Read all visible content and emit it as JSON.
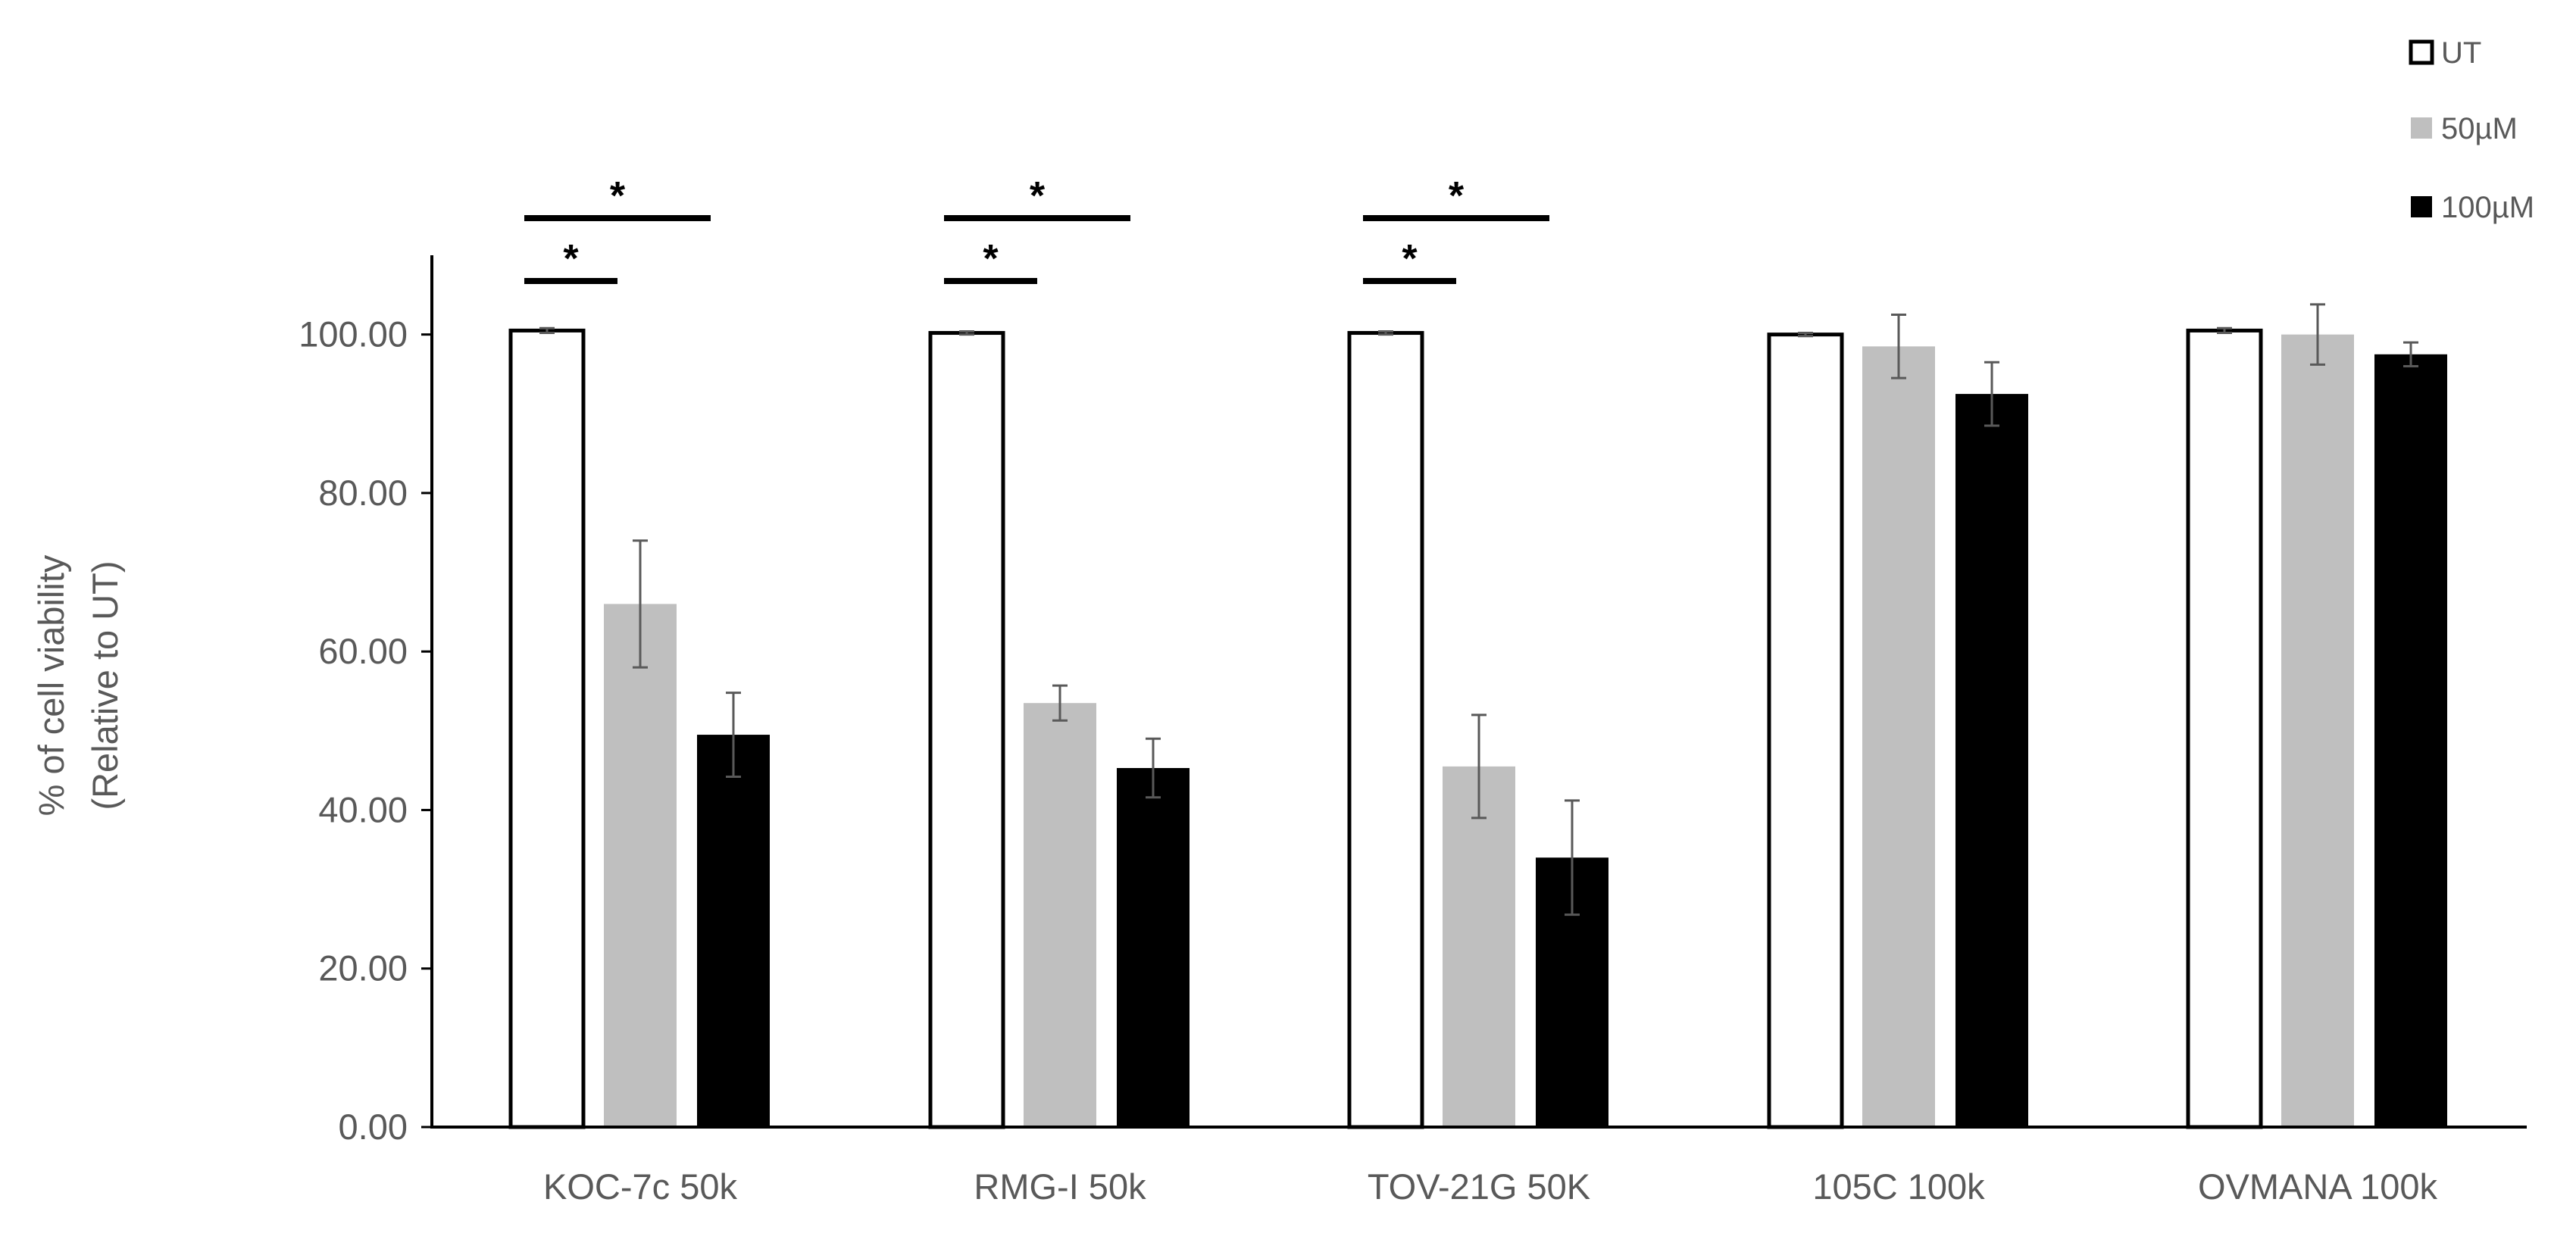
{
  "chart_data": {
    "type": "bar",
    "title": "",
    "xlabel": "",
    "ylabel": [
      "% of cell viability",
      "(Relative to UT)"
    ],
    "ylim": [
      0,
      110
    ],
    "yticks": [
      "0.00",
      "20.00",
      "40.00",
      "60.00",
      "80.00",
      "100.00"
    ],
    "grid": false,
    "legend_position": "top-right",
    "categories": [
      "KOC-7c 50k",
      "RMG-I 50k",
      "TOV-21G 50K",
      "105C 100k",
      "OVMANA 100k"
    ],
    "series": [
      {
        "name": "UT",
        "fill": "#ffffff",
        "stroke": "#000000",
        "values": [
          100.5,
          100.2,
          100.2,
          100.0,
          100.5
        ],
        "errors": [
          0.3,
          0.2,
          0.2,
          0.2,
          0.3
        ]
      },
      {
        "name": "50µM",
        "fill": "#bfbfbf",
        "stroke": "#bfbfbf",
        "values": [
          66.0,
          53.5,
          45.5,
          98.5,
          100.0
        ],
        "errors": [
          8.0,
          2.2,
          6.5,
          4.0,
          3.8
        ]
      },
      {
        "name": "100µM",
        "fill": "#000000",
        "stroke": "#000000",
        "values": [
          49.5,
          45.3,
          34.0,
          92.5,
          97.5
        ],
        "errors": [
          5.3,
          3.7,
          7.2,
          4.0,
          1.5
        ]
      }
    ],
    "significance": [
      {
        "category": 0,
        "from_series": 0,
        "to_series": 1,
        "label": "*"
      },
      {
        "category": 0,
        "from_series": 0,
        "to_series": 2,
        "label": "*"
      },
      {
        "category": 1,
        "from_series": 0,
        "to_series": 1,
        "label": "*"
      },
      {
        "category": 1,
        "from_series": 0,
        "to_series": 2,
        "label": "*"
      },
      {
        "category": 2,
        "from_series": 0,
        "to_series": 1,
        "label": "*"
      },
      {
        "category": 2,
        "from_series": 0,
        "to_series": 2,
        "label": "*"
      }
    ],
    "colors": {
      "axis": "#000000",
      "text": "#595959",
      "error_bar": "#595959"
    }
  }
}
